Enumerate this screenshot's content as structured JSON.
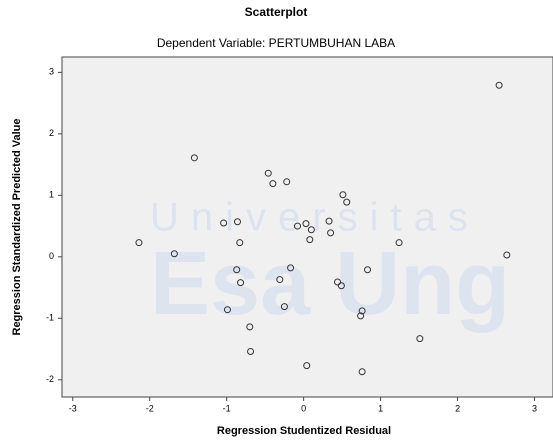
{
  "chart_data": {
    "type": "scatter",
    "title": "Scatterplot",
    "subtitle": "Dependent Variable: PERTUMBUHAN LABA",
    "xlabel": "Regression Studentized Residual",
    "ylabel": "Regression Standardized Predicted Value",
    "annotations": [
      "Universitas",
      "Esa Ung"
    ],
    "x": [
      2.54,
      -1.42,
      -0.46,
      -0.4,
      -0.22,
      0.51,
      0.56,
      -1.04,
      -0.86,
      0.33,
      -0.08,
      0.03,
      0.1,
      0.35,
      0.08,
      -0.83,
      -2.14,
      1.24,
      -1.68,
      2.64,
      -0.17,
      -0.87,
      0.83,
      -0.31,
      -0.82,
      0.44,
      0.49,
      -0.25,
      -0.99,
      0.76,
      0.74,
      -0.7,
      1.51,
      -0.69,
      0.04,
      0.76
    ],
    "values": [
      2.79,
      1.61,
      1.36,
      1.19,
      1.22,
      1.01,
      0.89,
      0.55,
      0.57,
      0.58,
      0.5,
      0.54,
      0.44,
      0.39,
      0.28,
      0.23,
      0.23,
      0.23,
      0.05,
      0.03,
      -0.18,
      -0.21,
      -0.21,
      -0.37,
      -0.42,
      -0.41,
      -0.47,
      -0.81,
      -0.86,
      -0.88,
      -0.96,
      -1.14,
      -1.33,
      -1.54,
      -1.77,
      -1.87
    ],
    "color": "#333333",
    "plot_background": "#f0f0f0",
    "xlim": [
      -3.14,
      3.24
    ],
    "xticks": [
      -3,
      -2,
      -1,
      0,
      1,
      2,
      3
    ],
    "ylim": [
      -2.28,
      3.25
    ],
    "yticks": [
      -2,
      -1,
      0,
      1,
      2,
      3
    ]
  }
}
